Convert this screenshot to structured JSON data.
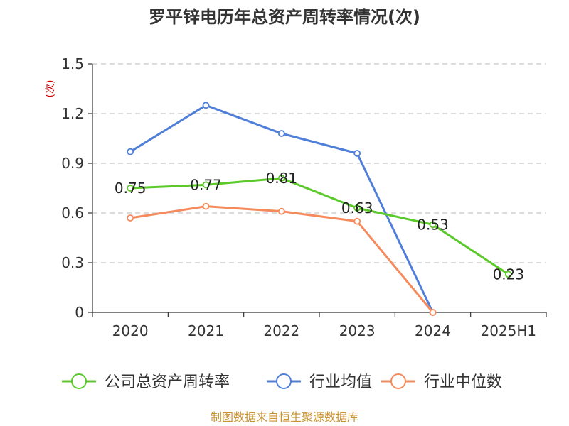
{
  "chart_data": {
    "type": "line",
    "title": "罗平锌电历年总资产周转率情况(次)",
    "ylabel": "(次)",
    "categories": [
      "2020",
      "2021",
      "2022",
      "2023",
      "2024",
      "2025H1"
    ],
    "ylim": [
      0,
      1.5
    ],
    "yticks": [
      0,
      0.3,
      0.6,
      0.9,
      1.2,
      1.5
    ],
    "ytick_labels": [
      "0",
      "0.3",
      "0.6",
      "0.9",
      "1.2",
      "1.5"
    ],
    "grid": true,
    "legend_position": "bottom",
    "series": [
      {
        "name": "公司总资产周转率",
        "color": "#5cc92a",
        "values": [
          0.75,
          0.77,
          0.81,
          0.63,
          0.53,
          0.23
        ],
        "labels": [
          "0.75",
          "0.77",
          "0.81",
          "0.63",
          "0.53",
          "0.23"
        ]
      },
      {
        "name": "行业均值",
        "color": "#4f7fd8",
        "values": [
          0.97,
          1.25,
          1.08,
          0.96,
          0,
          null
        ]
      },
      {
        "name": "行业中位数",
        "color": "#f58a5c",
        "values": [
          0.57,
          0.64,
          0.61,
          0.55,
          0,
          null
        ]
      }
    ]
  },
  "source": "制图数据来自恒生聚源数据库"
}
